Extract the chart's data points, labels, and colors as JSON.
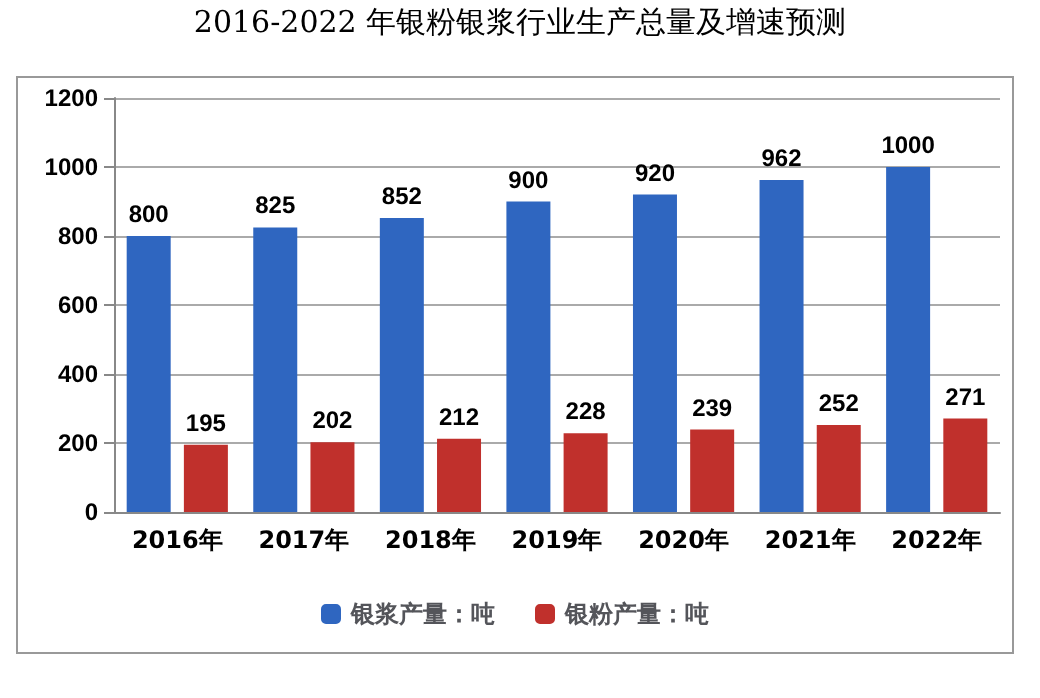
{
  "chart_data": {
    "type": "bar",
    "title": "2016-2022 年银粉银浆行业生产总量及增速预测",
    "categories": [
      "2016年",
      "2017年",
      "2018年",
      "2019年",
      "2020年",
      "2021年",
      "2022年"
    ],
    "series": [
      {
        "name": "银浆产量：吨",
        "color": "#2f66c0",
        "values": [
          800,
          825,
          852,
          900,
          920,
          962,
          1000
        ]
      },
      {
        "name": "银粉产量：吨",
        "color": "#c0302c",
        "values": [
          195,
          202,
          212,
          228,
          239,
          252,
          271
        ]
      }
    ],
    "ylim": [
      0,
      1200
    ],
    "yticks": [
      0,
      200,
      400,
      600,
      800,
      1000,
      1200
    ],
    "grid": "y",
    "legend": "bottom",
    "data_labels": true
  }
}
